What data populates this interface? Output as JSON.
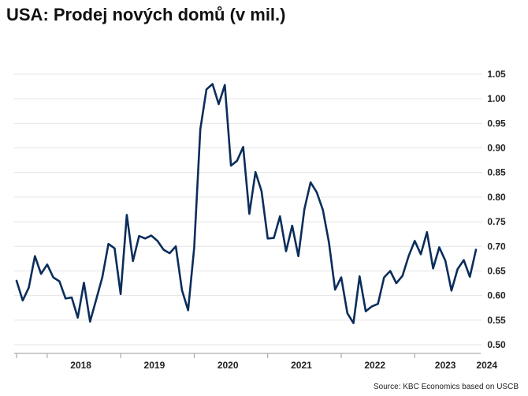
{
  "chart_data": {
    "type": "line",
    "title": "USA: Prodej nových domů (v mil.)",
    "source": "Source: KBC Economics based on USCB",
    "xlabel": "",
    "ylabel": "",
    "y_axis_side": "right",
    "ylim": [
      0.5,
      1.05
    ],
    "yticks": [
      "0.50",
      "0.55",
      "0.60",
      "0.65",
      "0.70",
      "0.75",
      "0.80",
      "0.85",
      "0.90",
      "0.95",
      "1.00",
      "1.05"
    ],
    "xtick_labels": [
      "2018",
      "2019",
      "2020",
      "2021",
      "2022",
      "2023",
      "2024"
    ],
    "grid": true,
    "line_color": "#0b2d5b",
    "x_start": "2017-08",
    "x_end": "2024-03",
    "series": [
      {
        "values": [
          0.63,
          0.59,
          0.616,
          0.68,
          0.644,
          0.663,
          0.637,
          0.629,
          0.594,
          0.596,
          0.555,
          0.626,
          0.547,
          0.592,
          0.637,
          0.705,
          0.696,
          0.603,
          0.764,
          0.67,
          0.721,
          0.716,
          0.722,
          0.711,
          0.693,
          0.686,
          0.7,
          0.611,
          0.57,
          0.697,
          0.938,
          1.019,
          1.03,
          0.989,
          1.028,
          0.864,
          0.874,
          0.902,
          0.766,
          0.851,
          0.812,
          0.716,
          0.717,
          0.761,
          0.69,
          0.742,
          0.68,
          0.776,
          0.83,
          0.81,
          0.774,
          0.708,
          0.612,
          0.637,
          0.564,
          0.544,
          0.639,
          0.568,
          0.578,
          0.583,
          0.637,
          0.65,
          0.625,
          0.64,
          0.68,
          0.711,
          0.684,
          0.729,
          0.655,
          0.698,
          0.671,
          0.61,
          0.654,
          0.672,
          0.638,
          0.693
        ]
      }
    ]
  }
}
